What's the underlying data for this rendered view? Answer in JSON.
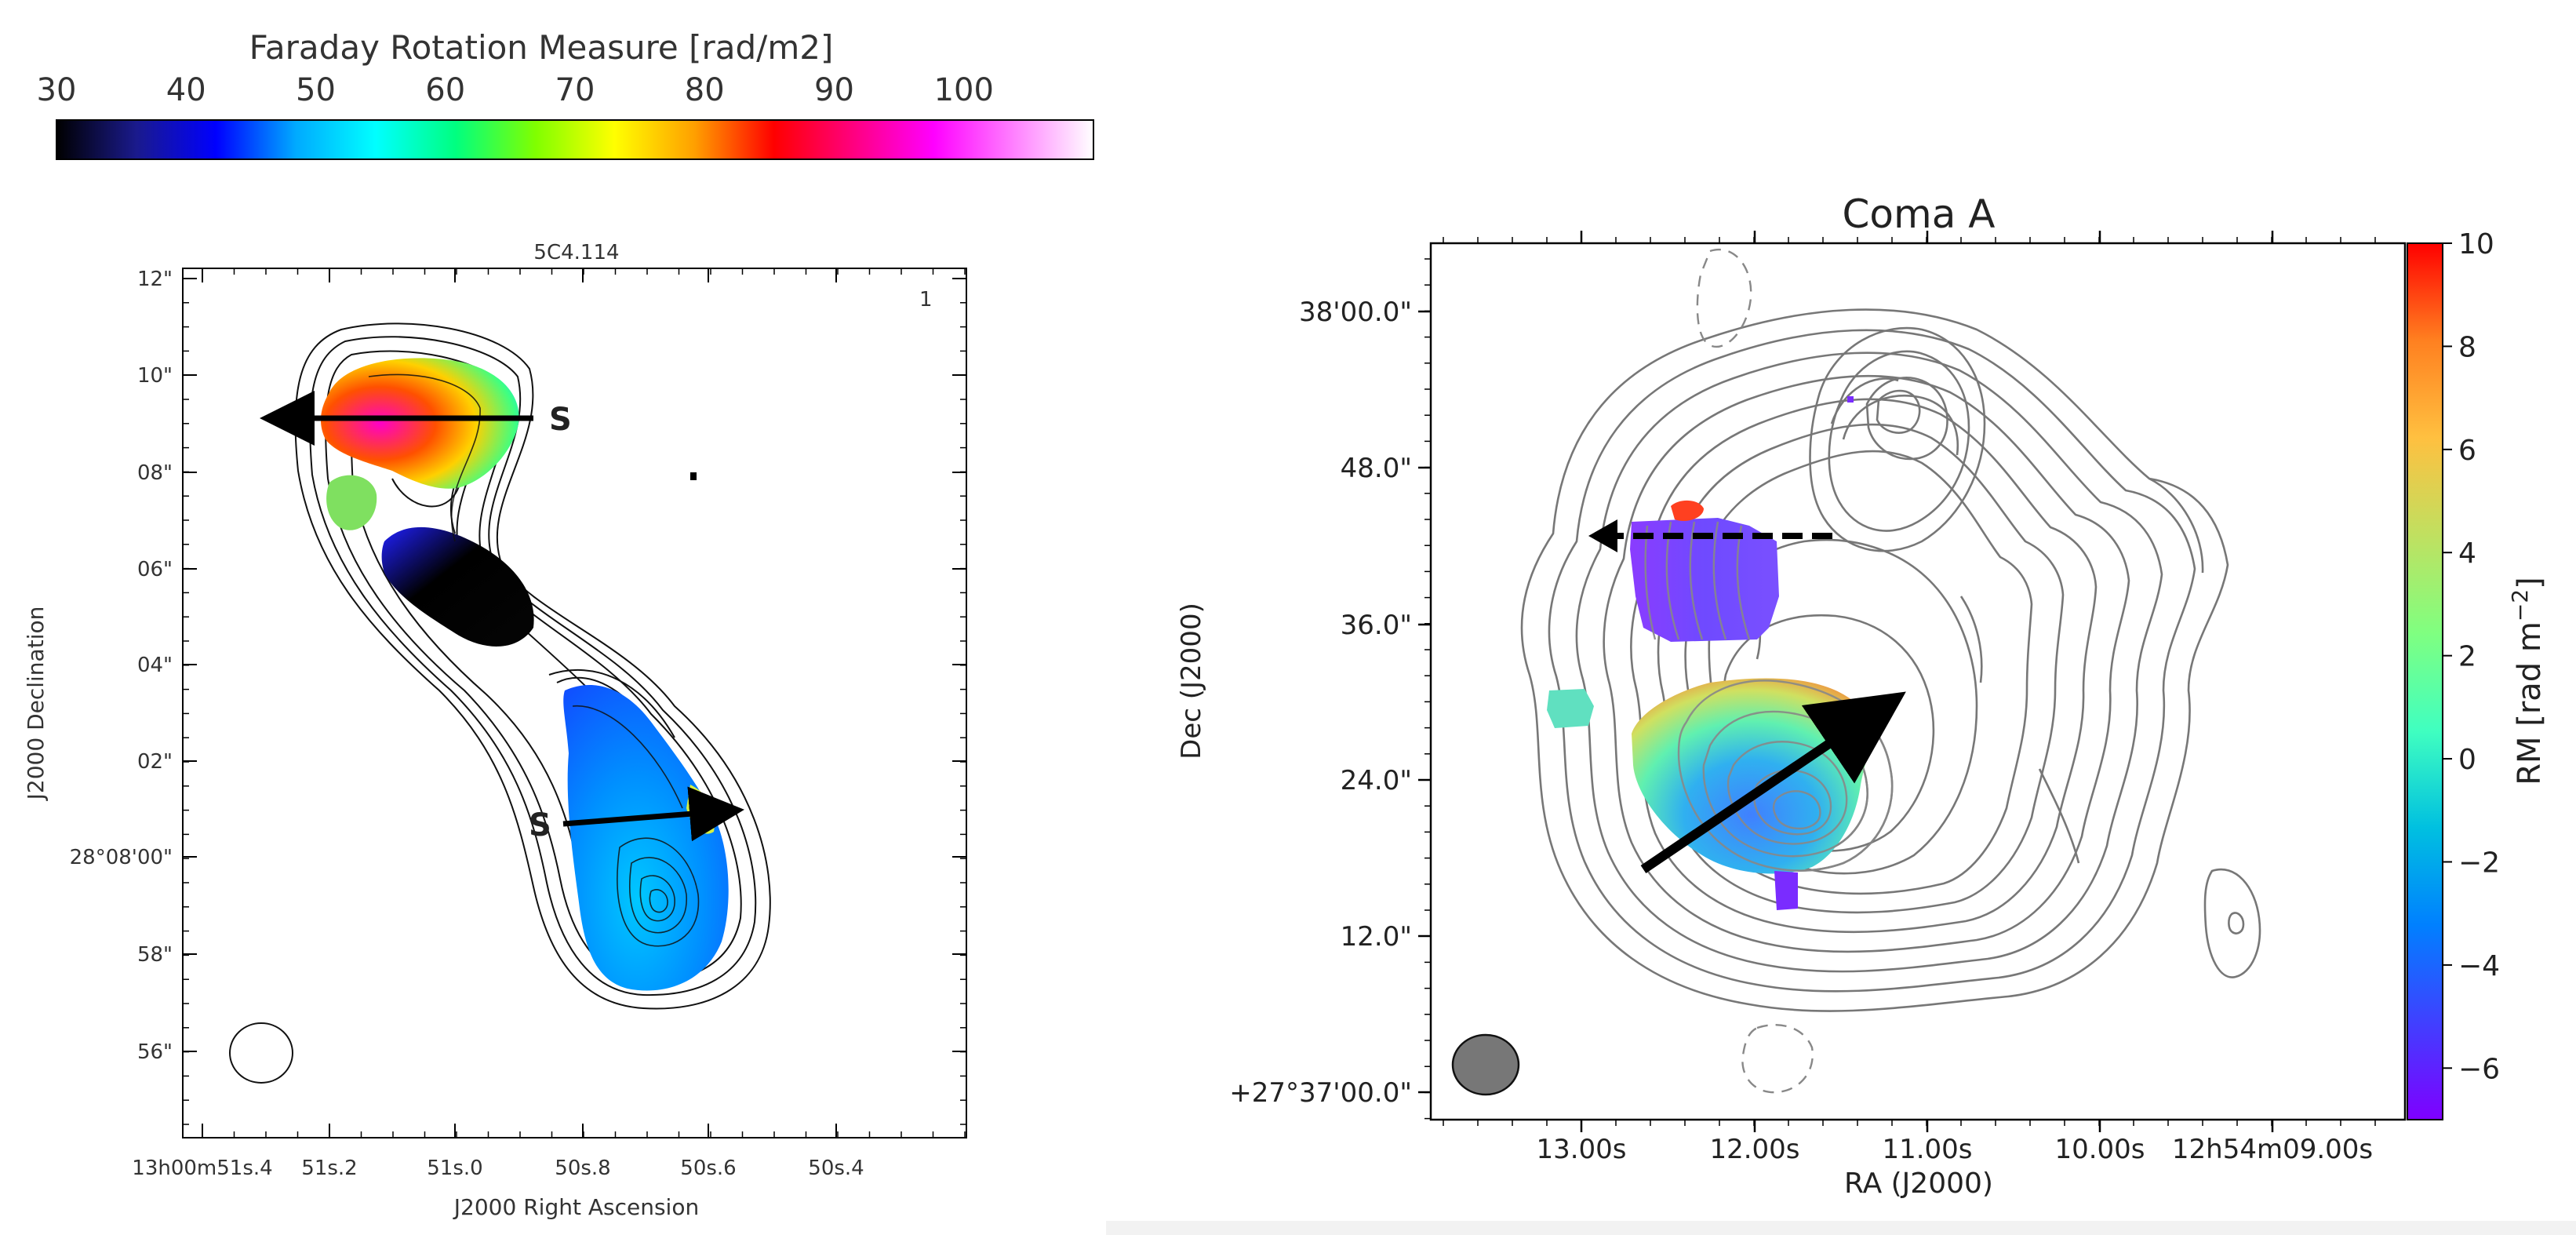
{
  "chart_data": [
    {
      "type": "heatmap",
      "panel": "left",
      "title": "5C4.114",
      "corner_label": "1",
      "colorbar": {
        "title": "Faraday Rotation Measure [rad/m2]",
        "ticks": [
          "30",
          "40",
          "50",
          "60",
          "70",
          "80",
          "90",
          "100"
        ],
        "range": [
          30,
          110
        ],
        "colors": [
          "#000000",
          "#1a1a8c",
          "#0000ff",
          "#00aaff",
          "#00ffff",
          "#00ff80",
          "#80ff00",
          "#ffff00",
          "#ffa000",
          "#ff0000",
          "#ff0080",
          "#ff00ff",
          "#ff80ff",
          "#ffffff"
        ]
      },
      "xlabel": "J2000 Right Ascension",
      "ylabel": "J2000 Declination",
      "x_ticks": [
        "13h00m51s.4",
        "51s.2",
        "51s.0",
        "50s.8",
        "50s.6",
        "50s.4"
      ],
      "y_ticks": [
        "12\"",
        "10\"",
        "08\"",
        "06\"",
        "04\"",
        "02\"",
        "28°08'00\"",
        "58\"",
        "56\""
      ],
      "annotations": [
        "S",
        "S"
      ]
    },
    {
      "type": "heatmap",
      "panel": "right",
      "title": "Coma A",
      "colorbar": {
        "label": "RM [rad m^-2]",
        "ticks": [
          "10",
          "8",
          "6",
          "4",
          "2",
          "0",
          "−2",
          "−4",
          "−6"
        ],
        "range": [
          -7,
          10
        ],
        "colors": [
          "#7f00ff",
          "#4040ff",
          "#0080ff",
          "#00c0e0",
          "#40ffc0",
          "#80ff80",
          "#c0e060",
          "#ffc040",
          "#ff8020",
          "#ff0000"
        ]
      },
      "xlabel": "RA (J2000)",
      "ylabel": "Dec (J2000)",
      "x_ticks": [
        "13.00s",
        "12.00s",
        "11.00s",
        "10.00s",
        "12h54m09.00s"
      ],
      "y_ticks": [
        "38'00.0\"",
        "48.0\"",
        "36.0\"",
        "24.0\"",
        "12.0\"",
        "+27°37'00.0\""
      ]
    }
  ]
}
